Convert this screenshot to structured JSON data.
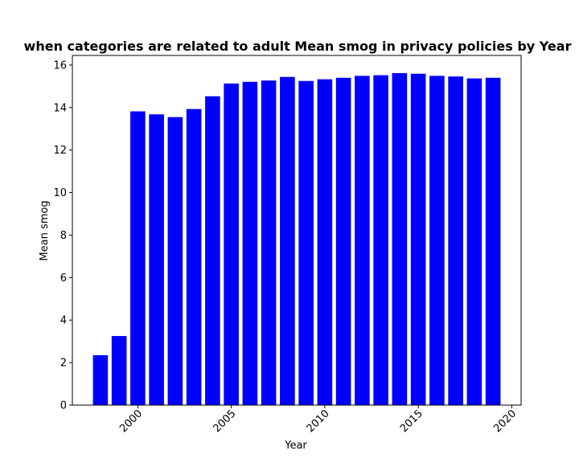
{
  "chart_data": {
    "type": "bar",
    "title": "when categories are related to adult Mean smog in privacy policies by Year",
    "xlabel": "Year",
    "ylabel": "Mean smog",
    "x": [
      1998,
      1999,
      2000,
      2001,
      2002,
      2003,
      2004,
      2005,
      2006,
      2007,
      2008,
      2009,
      2010,
      2011,
      2012,
      2013,
      2014,
      2015,
      2016,
      2017,
      2018,
      2019
    ],
    "values": [
      2.35,
      3.25,
      13.82,
      13.68,
      13.55,
      13.93,
      14.53,
      15.13,
      15.21,
      15.27,
      15.44,
      15.25,
      15.33,
      15.4,
      15.49,
      15.52,
      15.62,
      15.59,
      15.49,
      15.46,
      15.37,
      15.4
    ],
    "xlim": [
      1996.5,
      2020.5
    ],
    "ylim": [
      0,
      16.45
    ],
    "xticks": [
      2000,
      2005,
      2010,
      2015,
      2020
    ],
    "yticks": [
      0,
      2,
      4,
      6,
      8,
      10,
      12,
      14,
      16
    ],
    "bar_color": "#0000ff",
    "grid": false,
    "legend": "none"
  }
}
